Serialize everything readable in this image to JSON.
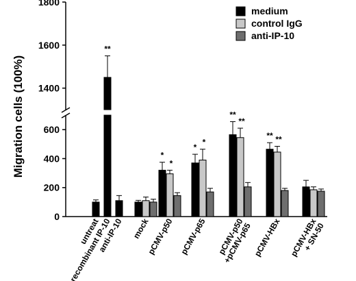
{
  "chart_data": {
    "type": "bar",
    "ylabel": "Migration cells (100%)",
    "y_axis_lower": {
      "ylim": [
        0,
        700
      ],
      "ticks": [
        "0",
        "200",
        "400",
        "600"
      ]
    },
    "y_axis_upper": {
      "ylim": [
        1300,
        1800
      ],
      "ticks": [
        "1400",
        "1600",
        "1800"
      ]
    },
    "legend": {
      "position": "top-right",
      "entries": [
        "medium",
        "control IgG",
        "anti-IP-10"
      ]
    },
    "colors": {
      "medium": "#000000",
      "control IgG": "#c8c8c8",
      "anti-IP-10": "#6e6e6e"
    },
    "grid": false,
    "categories": [
      {
        "label": "untreat",
        "bars": [
          {
            "series": "medium",
            "value": 100,
            "err": 15
          }
        ]
      },
      {
        "label": "recombinant IP-10",
        "bars": [
          {
            "series": "medium",
            "value": 1450,
            "err": 100,
            "sig": "**"
          }
        ]
      },
      {
        "label": "anti-IP-10",
        "bars": [
          {
            "series": "medium",
            "value": 110,
            "err": 35
          }
        ]
      },
      {
        "label": "mock",
        "bars": [
          {
            "series": "medium",
            "value": 100,
            "err": 12
          },
          {
            "series": "control IgG",
            "value": 110,
            "err": 25
          },
          {
            "series": "anti-IP-10",
            "value": 100,
            "err": 20
          }
        ]
      },
      {
        "label": "pCMV-p50",
        "bars": [
          {
            "series": "medium",
            "value": 320,
            "err": 55,
            "sig": "*"
          },
          {
            "series": "control IgG",
            "value": 295,
            "err": 25,
            "sig": "*"
          },
          {
            "series": "anti-IP-10",
            "value": 145,
            "err": 20
          }
        ]
      },
      {
        "label": "pCMV-p65",
        "bars": [
          {
            "series": "medium",
            "value": 370,
            "err": 60,
            "sig": "*"
          },
          {
            "series": "control IgG",
            "value": 390,
            "err": 75,
            "sig": "*"
          },
          {
            "series": "anti-IP-10",
            "value": 170,
            "err": 25
          }
        ]
      },
      {
        "label": "pCMV-p50\n+pCMV-p65",
        "bars": [
          {
            "series": "medium",
            "value": 565,
            "err": 90,
            "sig": "**"
          },
          {
            "series": "control IgG",
            "value": 545,
            "err": 65,
            "sig": "**"
          },
          {
            "series": "anti-IP-10",
            "value": 205,
            "err": 30
          }
        ]
      },
      {
        "label": "pCMV-HBx",
        "bars": [
          {
            "series": "medium",
            "value": 465,
            "err": 45,
            "sig": "**"
          },
          {
            "series": "control IgG",
            "value": 445,
            "err": 40,
            "sig": "**"
          },
          {
            "series": "anti-IP-10",
            "value": 180,
            "err": 15
          }
        ]
      },
      {
        "label": "pCMV-HBx\n+ SN-50",
        "bars": [
          {
            "series": "medium",
            "value": 205,
            "err": 45
          },
          {
            "series": "control IgG",
            "value": 185,
            "err": 20
          },
          {
            "series": "anti-IP-10",
            "value": 175,
            "err": 15
          }
        ]
      }
    ]
  }
}
